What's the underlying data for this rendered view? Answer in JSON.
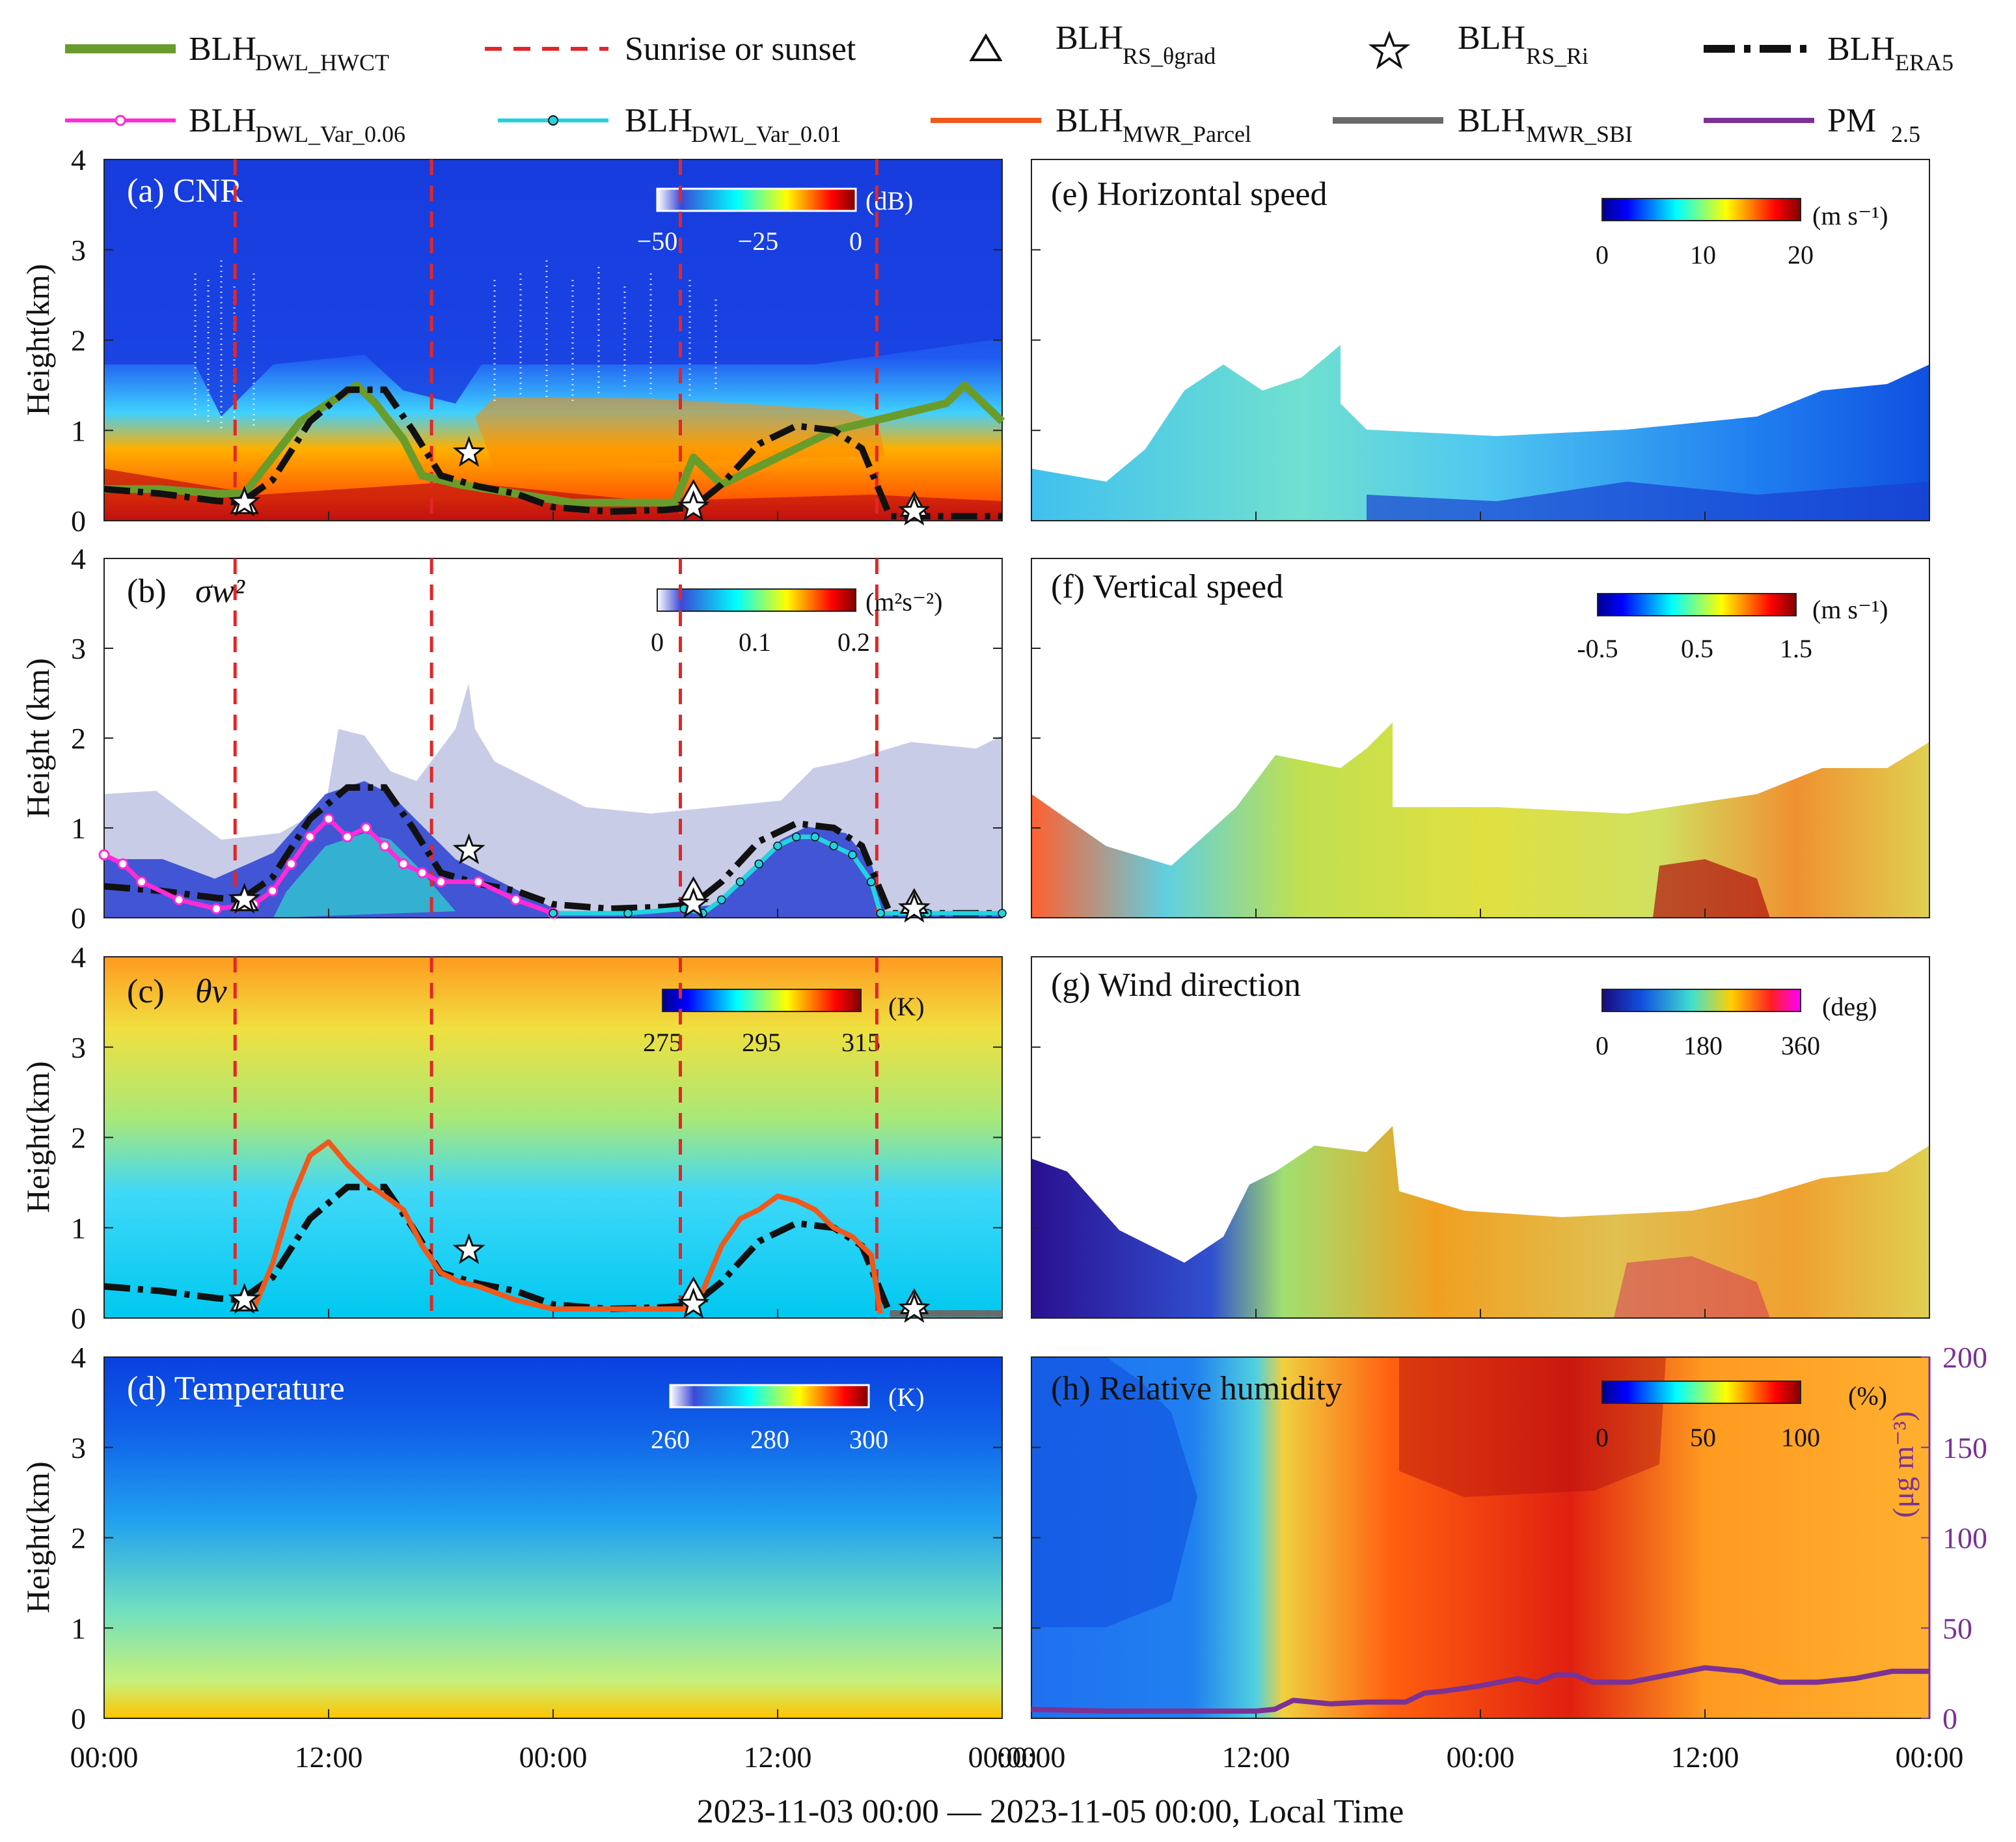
{
  "legend": {
    "items": [
      {
        "label": "BLH",
        "sub": "DWL_HWCT",
        "color": "#6a9c2c"
      },
      {
        "label": "Sunrise or sunset",
        "sub": "",
        "color": "#e32626"
      },
      {
        "label": "BLH",
        "sub": "RS_θgrad",
        "color": "#111111"
      },
      {
        "label": "BLH",
        "sub": "RS_Ri",
        "color": "#111111"
      },
      {
        "label": "BLH",
        "sub": "ERA5",
        "color": "#111111"
      },
      {
        "label": "BLH",
        "sub": "DWL_Var_0.06",
        "color": "#ff2bd6"
      },
      {
        "label": "BLH",
        "sub": "DWL_Var_0.01",
        "color": "#22d3e0"
      },
      {
        "label": "BLH",
        "sub": "MWR_Parcel",
        "color": "#f0591b"
      },
      {
        "label": "BLH",
        "sub": "MWR_SBI",
        "color": "#6a6a6a"
      },
      {
        "label": "PM",
        "sub": "2.5",
        "color": "#7b3294"
      }
    ]
  },
  "panels": [
    {
      "id": "a",
      "title": "(a) CNR",
      "cb_ticks": [
        "−50",
        "−25",
        "0"
      ],
      "cb_unit": "(dB)",
      "ylabel": "Height(km)"
    },
    {
      "id": "b",
      "title": "(b)",
      "cb_ticks": [
        "0",
        "0.1",
        "0.2"
      ],
      "cb_unit": "(m²s⁻²)",
      "ylabel": "Height (km)"
    },
    {
      "id": "c",
      "title": "(c)",
      "cb_ticks": [
        "275",
        "295",
        "315"
      ],
      "cb_unit": "(K)",
      "ylabel": "Height(km)"
    },
    {
      "id": "d",
      "title": "(d) Temperature",
      "cb_ticks": [
        "260",
        "280",
        "300"
      ],
      "cb_unit": "(K)",
      "ylabel": "Height(km)"
    },
    {
      "id": "e",
      "title": "(e) Horizontal speed",
      "cb_ticks": [
        "0",
        "10",
        "20"
      ],
      "cb_unit": "(m s⁻¹)"
    },
    {
      "id": "f",
      "title": "(f) Vertical speed",
      "cb_ticks": [
        "-0.5",
        "0.5",
        "1.5"
      ],
      "cb_unit": "(m s⁻¹)"
    },
    {
      "id": "g",
      "title": "(g) Wind direction",
      "cb_ticks": [
        "0",
        "180",
        "360"
      ],
      "cb_unit": "(deg)"
    },
    {
      "id": "h",
      "title": "(h) Relative humidity",
      "cb_ticks": [
        "0",
        "50",
        "100"
      ],
      "cb_unit": "(%)"
    }
  ],
  "math_labels": {
    "b": "σw²",
    "c": "θv"
  },
  "axes": {
    "y_ticks": [
      "0",
      "1",
      "2",
      "3",
      "4"
    ],
    "x_ticks": [
      "00:00",
      "12:00",
      "00:00",
      "12:00",
      "00:00"
    ],
    "xlabel": "2023-11-03 00:00 — 2023-11-05 00:00, Local Time",
    "pm_ticks": [
      "0",
      "50",
      "100",
      "150",
      "200"
    ],
    "pm_label": "(μg m⁻³)"
  },
  "chart_data": [
    {
      "type": "line",
      "panel": "a",
      "title": "(a) CNR",
      "xlabel": "2023-11-03 00:00 — 2023-11-05 00:00, Local Time",
      "ylabel": "Height(km)",
      "xlim_hours": [
        0,
        48
      ],
      "ylim": [
        0,
        4
      ],
      "sunrise_sunset_hours": [
        7.0,
        17.5,
        30.8,
        41.3
      ],
      "series": [
        {
          "name": "BLH_ERA5",
          "x": [
            0,
            3,
            6,
            7.3,
            9,
            11,
            13,
            15,
            16.5,
            18,
            20,
            22,
            24,
            27,
            30,
            31.5,
            33,
            35,
            37,
            39,
            40.5,
            41.3,
            42,
            45,
            48
          ],
          "y": [
            0.35,
            0.3,
            0.22,
            0.2,
            0.45,
            1.1,
            1.45,
            1.45,
            1.0,
            0.5,
            0.38,
            0.3,
            0.15,
            0.1,
            0.12,
            0.15,
            0.4,
            0.85,
            1.05,
            1.0,
            0.8,
            0.4,
            0.05,
            0.05,
            0.05
          ]
        },
        {
          "name": "BLH_DWL_HWCT",
          "x": [
            0,
            3,
            6,
            7.5,
            9,
            10.5,
            12,
            13.5,
            14.5,
            16,
            17,
            19,
            22,
            25,
            28,
            30.5,
            31.5,
            33,
            35,
            37,
            39,
            41,
            43,
            45,
            46,
            48
          ],
          "y": [
            0.35,
            0.35,
            0.3,
            0.3,
            0.7,
            1.1,
            1.3,
            1.5,
            1.3,
            0.9,
            0.5,
            0.4,
            0.3,
            0.2,
            0.2,
            0.2,
            0.7,
            0.4,
            0.6,
            0.8,
            1.0,
            1.1,
            1.2,
            1.3,
            1.5,
            1.1
          ]
        },
        {
          "name": "BLH_RS_Ri",
          "x": [
            7.5,
            19.5,
            31.5,
            43.3
          ],
          "y": [
            0.2,
            0.75,
            0.15,
            0.1
          ]
        },
        {
          "name": "BLH_RS_θgrad",
          "x": [
            7.5,
            31.5,
            43.3
          ],
          "y": [
            0.18,
            0.28,
            0.15
          ]
        }
      ]
    },
    {
      "type": "line",
      "panel": "b",
      "ylabel": "Height (km)",
      "ylim": [
        0,
        4
      ],
      "series": [
        {
          "name": "BLH_DWL_Var_0.06",
          "x": [
            0,
            1,
            2,
            4,
            6,
            8,
            9,
            10,
            11,
            12,
            13,
            14,
            15,
            16,
            17,
            18,
            20,
            22,
            24
          ],
          "y": [
            0.7,
            0.6,
            0.4,
            0.2,
            0.1,
            0.15,
            0.3,
            0.6,
            0.9,
            1.1,
            0.9,
            1.0,
            0.8,
            0.6,
            0.5,
            0.4,
            0.4,
            0.2,
            0.05
          ]
        },
        {
          "name": "BLH_DWL_Var_0.01",
          "x": [
            24,
            28,
            31,
            32,
            33,
            34,
            35,
            36,
            37,
            38,
            39,
            40,
            41,
            41.5,
            44,
            48
          ],
          "y": [
            0.05,
            0.05,
            0.1,
            0.05,
            0.2,
            0.4,
            0.6,
            0.8,
            0.9,
            0.9,
            0.8,
            0.7,
            0.4,
            0.05,
            0.05,
            0.05
          ]
        }
      ]
    },
    {
      "type": "line",
      "panel": "c",
      "ylabel": "Height(km)",
      "ylim": [
        0,
        4
      ],
      "series": [
        {
          "name": "BLH_MWR_Parcel",
          "x": [
            8,
            9,
            10,
            11,
            12,
            13,
            14,
            15,
            16,
            17,
            18,
            19,
            20,
            22,
            24,
            28,
            31,
            32,
            33,
            34,
            35,
            36,
            37,
            38,
            39,
            40,
            41,
            41.5
          ],
          "y": [
            0.1,
            0.6,
            1.3,
            1.8,
            1.95,
            1.7,
            1.5,
            1.35,
            1.2,
            0.8,
            0.5,
            0.4,
            0.35,
            0.2,
            0.1,
            0.1,
            0.1,
            0.3,
            0.8,
            1.1,
            1.2,
            1.35,
            1.3,
            1.2,
            1.0,
            0.9,
            0.7,
            0.05
          ]
        },
        {
          "name": "BLH_MWR_SBI",
          "x": [
            42,
            48
          ],
          "y": [
            0.05,
            0.05
          ]
        }
      ]
    },
    {
      "type": "line",
      "panel": "h",
      "title": "(h) Relative humidity",
      "ylabel_right": "PM2.5 (μg m⁻³)",
      "ylim_right": [
        0,
        200
      ],
      "series": [
        {
          "name": "PM2.5",
          "x": [
            0,
            4,
            8,
            10,
            12,
            13,
            14,
            16,
            18,
            20,
            21,
            22,
            24,
            26,
            27,
            28,
            29,
            30,
            32,
            34,
            36,
            38,
            40,
            42,
            44,
            46,
            48
          ],
          "y": [
            5,
            4,
            4,
            4,
            4,
            5,
            10,
            8,
            9,
            9,
            14,
            15,
            18,
            22,
            20,
            24,
            24,
            20,
            20,
            24,
            28,
            26,
            20,
            20,
            22,
            26,
            26
          ]
        }
      ]
    }
  ]
}
